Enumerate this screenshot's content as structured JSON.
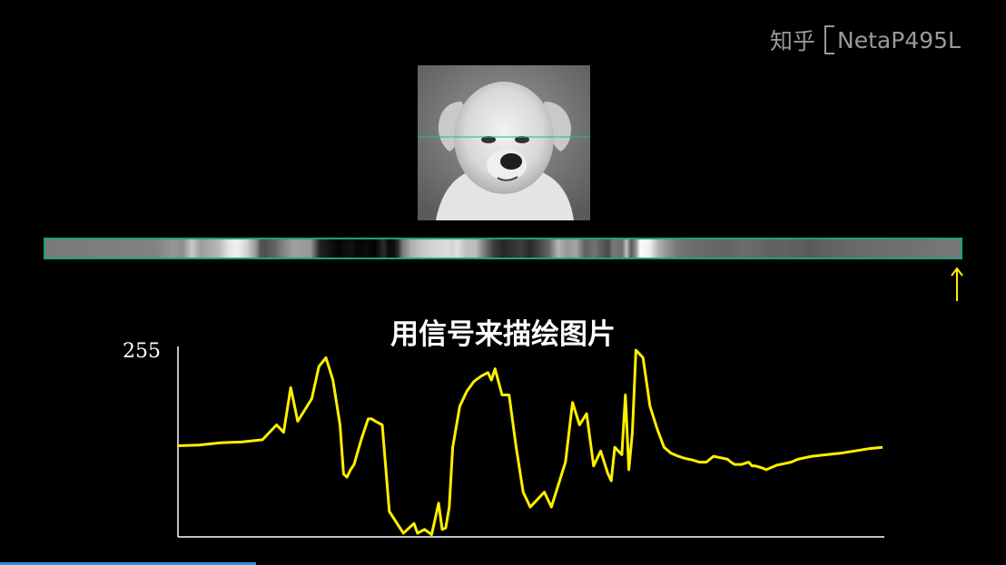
{
  "watermark": {
    "logo": "知乎",
    "user": "NetaP495L"
  },
  "caption": "用信号来描绘图片",
  "colors": {
    "signal": "#ffef00",
    "strip_border": "#1aa37a",
    "scanline": "#22c08a",
    "arrow": "#ffef00",
    "axis": "#ffffff"
  },
  "chart_data": {
    "type": "line",
    "ytick_labels": [
      "255"
    ],
    "ylim": [
      0,
      255
    ],
    "xlim": [
      0,
      1
    ],
    "grid": false,
    "series": [
      {
        "x": [
          0,
          0.03,
          0.06,
          0.09,
          0.12,
          0.14,
          0.15,
          0.16,
          0.17,
          0.18,
          0.19,
          0.2,
          0.21,
          0.22,
          0.23,
          0.235,
          0.24,
          0.245,
          0.25,
          0.26,
          0.27,
          0.275,
          0.28,
          0.29,
          0.3,
          0.32,
          0.335,
          0.34,
          0.35,
          0.36,
          0.37,
          0.375,
          0.38,
          0.385,
          0.39,
          0.4,
          0.405,
          0.41,
          0.42,
          0.43,
          0.44,
          0.445,
          0.45,
          0.46,
          0.47,
          0.48,
          0.49,
          0.5,
          0.51,
          0.52,
          0.53,
          0.54,
          0.55,
          0.56,
          0.57,
          0.58,
          0.59,
          0.6,
          0.61,
          0.615,
          0.62,
          0.63,
          0.635,
          0.64,
          0.645,
          0.65,
          0.66,
          0.67,
          0.68,
          0.69,
          0.7,
          0.71,
          0.72,
          0.73,
          0.74,
          0.75,
          0.76,
          0.77,
          0.78,
          0.785,
          0.79,
          0.8,
          0.81,
          0.815,
          0.82,
          0.83,
          0.835,
          0.84,
          0.845,
          0.85,
          0.86,
          0.87,
          0.88,
          0.89,
          0.9,
          0.92,
          0.94,
          0.96,
          0.98,
          1.0
        ],
        "values": [
          122,
          123,
          126,
          127,
          130,
          150,
          140,
          200,
          155,
          170,
          185,
          228,
          240,
          210,
          150,
          84,
          80,
          90,
          97,
          130,
          158,
          158,
          155,
          150,
          34,
          5,
          18,
          5,
          10,
          3,
          45,
          10,
          12,
          40,
          120,
          175,
          185,
          195,
          208,
          215,
          220,
          210,
          225,
          190,
          190,
          120,
          60,
          40,
          50,
          60,
          40,
          70,
          100,
          180,
          150,
          165,
          95,
          115,
          85,
          75,
          120,
          110,
          190,
          90,
          140,
          250,
          240,
          175,
          145,
          120,
          112,
          108,
          105,
          103,
          100,
          100,
          108,
          106,
          104,
          100,
          97,
          97,
          100,
          95,
          95,
          92,
          90,
          92,
          94,
          96,
          98,
          100,
          104,
          106,
          108,
          110,
          112,
          115,
          118,
          120
        ]
      }
    ]
  }
}
